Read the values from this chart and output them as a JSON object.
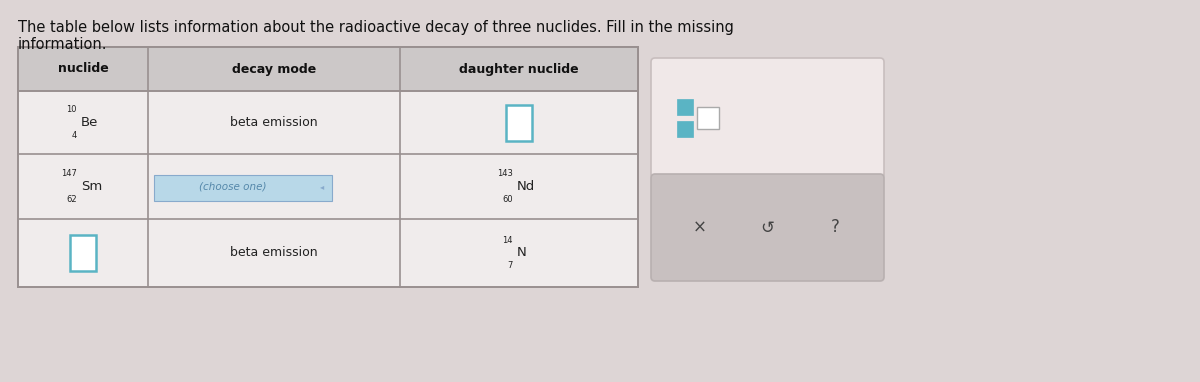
{
  "bg_color": "#ddd5d5",
  "title_text": "The table below lists information about the radioactive decay of three nuclides. Fill in the missing\ninformation.",
  "title_fontsize": 10.5,
  "title_color": "#111111",
  "table_bg": "#f0ecec",
  "header_bg": "#ccc8c8",
  "cell_border_color": "#999090",
  "col_headers": [
    "nuclide",
    "decay mode",
    "daughter nuclide"
  ],
  "row1_nuclide_sup": "10",
  "row1_nuclide_sub": "4",
  "row1_nuclide_sym": "Be",
  "row1_decay": "beta emission",
  "row2_nuclide_sup": "147",
  "row2_nuclide_sub": "62",
  "row2_nuclide_sym": "Sm",
  "row2_decay": "(choose one)",
  "row2_daughter_sup": "143",
  "row2_daughter_sub": "60",
  "row2_daughter_sym": "Nd",
  "row3_decay": "beta emission",
  "row3_daughter_sup": "14",
  "row3_daughter_sub": "7",
  "row3_daughter_sym": "N",
  "nuclide_input_color": "#5ab4c4",
  "choose_one_bg": "#b8d8e8",
  "choose_one_color": "#5588aa",
  "side_panel_top_bg": "#f0e8e8",
  "side_panel_top_border": "#c8bebe",
  "side_panel_bot_bg": "#c8c0c0",
  "side_panel_bot_border": "#b8b0b0"
}
